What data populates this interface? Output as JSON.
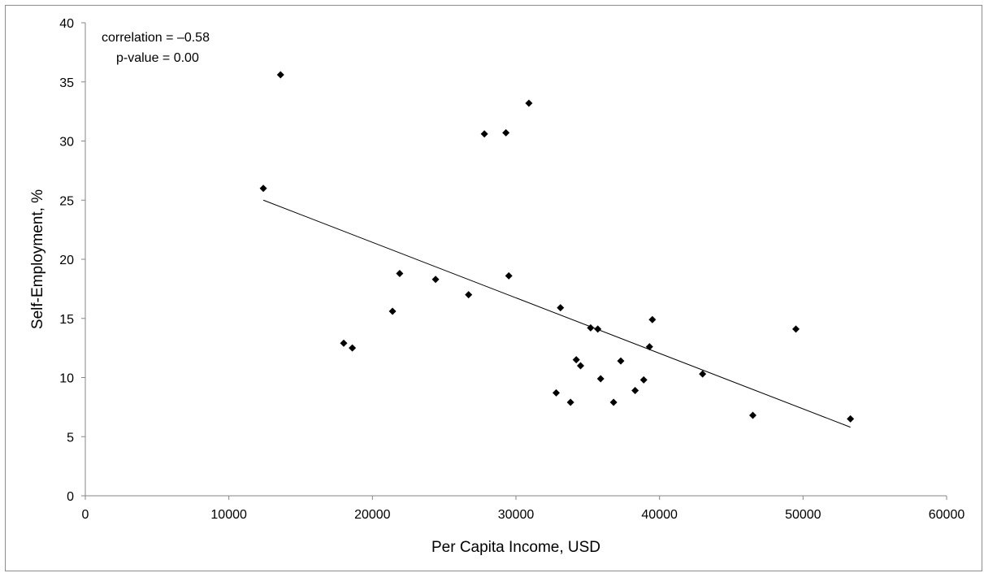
{
  "chart_data": {
    "type": "scatter",
    "xlabel": "Per Capita Income, USD",
    "ylabel": "Self-Employment, %",
    "xlim": [
      0,
      60000
    ],
    "ylim": [
      0,
      40
    ],
    "xticks": [
      0,
      10000,
      20000,
      30000,
      40000,
      50000,
      60000
    ],
    "yticks": [
      0,
      5,
      10,
      15,
      20,
      25,
      30,
      35,
      40
    ],
    "grid": false,
    "legend": "none",
    "marker": "diamond",
    "marker_color": "#000000",
    "annotations": [
      "correlation = –0.58",
      "p-value = 0.00"
    ],
    "points": [
      {
        "x": 12400,
        "y": 26.0
      },
      {
        "x": 13600,
        "y": 35.6
      },
      {
        "x": 18000,
        "y": 12.9
      },
      {
        "x": 18600,
        "y": 12.5
      },
      {
        "x": 21400,
        "y": 15.6
      },
      {
        "x": 21900,
        "y": 18.8
      },
      {
        "x": 24400,
        "y": 18.3
      },
      {
        "x": 26700,
        "y": 17.0
      },
      {
        "x": 27800,
        "y": 30.6
      },
      {
        "x": 29300,
        "y": 30.7
      },
      {
        "x": 29500,
        "y": 18.6
      },
      {
        "x": 30900,
        "y": 33.2
      },
      {
        "x": 32800,
        "y": 8.7
      },
      {
        "x": 33100,
        "y": 15.9
      },
      {
        "x": 33800,
        "y": 7.9
      },
      {
        "x": 34200,
        "y": 11.5
      },
      {
        "x": 34500,
        "y": 11.0
      },
      {
        "x": 35200,
        "y": 14.2
      },
      {
        "x": 35700,
        "y": 14.1
      },
      {
        "x": 35900,
        "y": 9.9
      },
      {
        "x": 36800,
        "y": 7.9
      },
      {
        "x": 37300,
        "y": 11.4
      },
      {
        "x": 38300,
        "y": 8.9
      },
      {
        "x": 38900,
        "y": 9.8
      },
      {
        "x": 39300,
        "y": 12.6
      },
      {
        "x": 39500,
        "y": 14.9
      },
      {
        "x": 43000,
        "y": 10.3
      },
      {
        "x": 46500,
        "y": 6.8
      },
      {
        "x": 49500,
        "y": 14.1
      },
      {
        "x": 53300,
        "y": 6.5
      }
    ],
    "trendline": {
      "x": [
        12400,
        53300
      ],
      "y": [
        25.0,
        5.8
      ]
    }
  }
}
